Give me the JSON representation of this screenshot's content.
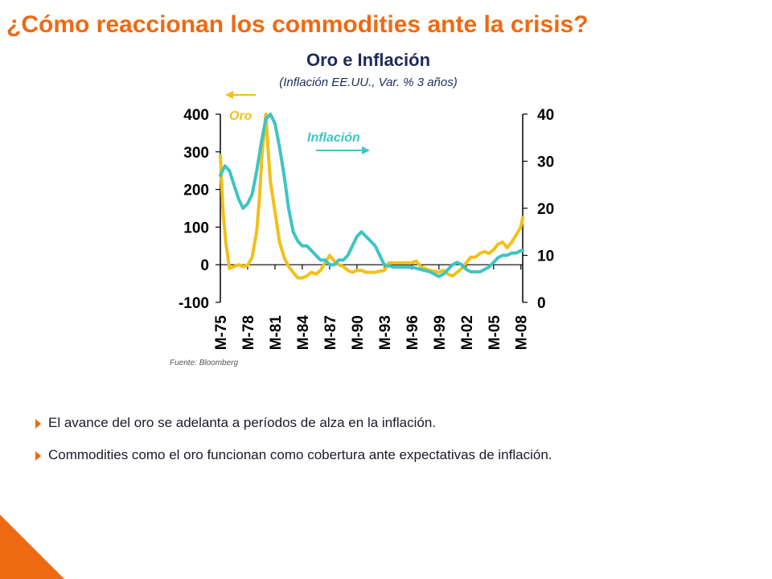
{
  "slide": {
    "title": "¿Cómo reaccionan los commodities ante la crisis?",
    "bullets": [
      "El avance del oro se adelanta a períodos de alza en la inflación.",
      "Commodities como el oro funcionan como cobertura ante expectativas de inflación."
    ],
    "accent_color": "#ee6a12"
  },
  "chart_data": {
    "type": "line",
    "title": "Oro e Inflación",
    "subtitle": "(Inflación EE.UU., Var. % 3 años)",
    "source": "Fuente: Bloomberg",
    "x_tick_labels": [
      "M-75",
      "M-78",
      "M-81",
      "M-84",
      "M-87",
      "M-90",
      "M-93",
      "M-96",
      "M-99",
      "M-02",
      "M-05",
      "M-08"
    ],
    "y_left": {
      "ticks": [
        "400",
        "300",
        "200",
        "100",
        "0",
        "-100"
      ],
      "ylim": [
        -100,
        400
      ]
    },
    "y_right": {
      "ticks": [
        "40",
        "30",
        "20",
        "10",
        "0"
      ],
      "ylim": [
        0,
        40
      ]
    },
    "legend": [
      {
        "name": "Oro",
        "axis": "left",
        "arrow": "left"
      },
      {
        "name": "Inflación",
        "axis": "right",
        "arrow": "right"
      }
    ],
    "series": [
      {
        "name": "Oro",
        "axis": "left",
        "color": "#f2c018",
        "x": [
          1975.0,
          1975.3,
          1975.6,
          1976.0,
          1976.5,
          1977.0,
          1977.5,
          1978.0,
          1978.5,
          1979.0,
          1979.3,
          1979.6,
          1980.0,
          1980.2,
          1980.5,
          1981.0,
          1981.5,
          1982.0,
          1982.5,
          1983.0,
          1983.5,
          1984.0,
          1984.5,
          1985.0,
          1985.5,
          1986.0,
          1986.5,
          1987.0,
          1987.5,
          1988.0,
          1988.5,
          1989.0,
          1989.5,
          1990.0,
          1990.5,
          1991.0,
          1992.0,
          1993.0,
          1993.5,
          1994.0,
          1995.0,
          1996.0,
          1996.5,
          1997.0,
          1997.5,
          1998.0,
          1999.0,
          1999.5,
          2000.0,
          2000.5,
          2001.0,
          2001.5,
          2002.0,
          2002.5,
          2003.0,
          2003.5,
          2004.0,
          2004.5,
          2005.0,
          2005.5,
          2006.0,
          2006.5,
          2007.0,
          2007.5,
          2008.0,
          2008.2
        ],
        "values": [
          290,
          140,
          60,
          -10,
          -5,
          0,
          -5,
          -2,
          20,
          90,
          180,
          300,
          400,
          320,
          220,
          140,
          60,
          20,
          -5,
          -20,
          -35,
          -35,
          -30,
          -20,
          -25,
          -15,
          5,
          25,
          10,
          0,
          -5,
          -15,
          -20,
          -15,
          -15,
          -20,
          -20,
          -15,
          5,
          5,
          5,
          5,
          10,
          -5,
          -10,
          -15,
          -20,
          -15,
          -25,
          -30,
          -20,
          -10,
          5,
          20,
          20,
          30,
          35,
          30,
          40,
          55,
          60,
          45,
          60,
          80,
          100,
          125
        ]
      },
      {
        "name": "Inflación",
        "axis": "right",
        "color": "#3ec4c4",
        "x": [
          1975.0,
          1975.5,
          1976.0,
          1976.5,
          1977.0,
          1977.5,
          1978.0,
          1978.5,
          1979.0,
          1979.5,
          1980.0,
          1980.5,
          1981.0,
          1981.5,
          1982.0,
          1982.5,
          1983.0,
          1983.5,
          1984.0,
          1984.5,
          1985.0,
          1985.5,
          1986.0,
          1986.5,
          1987.0,
          1987.5,
          1988.0,
          1988.5,
          1989.0,
          1989.5,
          1990.0,
          1990.5,
          1991.0,
          1991.5,
          1992.0,
          1992.5,
          1993.0,
          1994.0,
          1995.0,
          1996.0,
          1997.0,
          1998.0,
          1998.5,
          1999.0,
          1999.5,
          2000.0,
          2000.5,
          2001.0,
          2001.5,
          2002.0,
          2002.5,
          2003.0,
          2003.5,
          2004.0,
          2004.5,
          2005.0,
          2005.5,
          2006.0,
          2006.5,
          2007.0,
          2007.5,
          2008.0,
          2008.2
        ],
        "values": [
          27,
          29,
          28,
          25,
          22,
          20,
          21,
          23,
          28,
          34,
          39,
          40,
          38,
          33,
          27,
          20,
          15,
          13,
          12,
          12,
          11,
          10,
          9,
          9,
          8,
          8,
          9,
          9,
          10,
          12,
          14,
          15,
          14,
          13,
          12,
          10,
          8,
          7.5,
          7.5,
          7.5,
          7,
          6.5,
          6,
          5.5,
          6,
          7,
          8,
          8.5,
          8,
          7,
          6.5,
          6.5,
          6.5,
          7,
          7.5,
          8.5,
          9.5,
          10,
          10,
          10.5,
          10.5,
          11,
          11
        ]
      }
    ]
  }
}
